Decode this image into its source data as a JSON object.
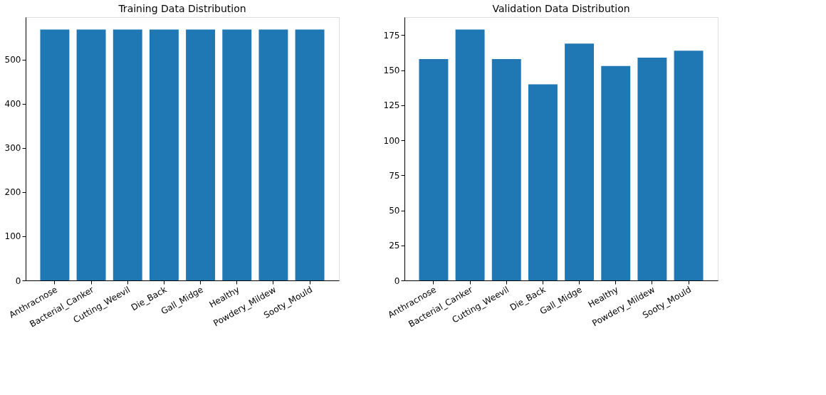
{
  "chart_data": [
    {
      "type": "bar",
      "title": "Training Data Distribution",
      "categories": [
        "Anthracnose",
        "Bacterial_Canker",
        "Cutting_Weevil",
        "Die_Back",
        "Gall_Midge",
        "Healthy",
        "Powdery_Mildew",
        "Sooty_Mould"
      ],
      "values": [
        568,
        568,
        568,
        568,
        568,
        568,
        568,
        568
      ],
      "color": "#1f77b4",
      "ylim": [
        0,
        596.4
      ],
      "yticks": [
        0,
        100,
        200,
        300,
        400,
        500
      ],
      "grid": false
    },
    {
      "type": "bar",
      "title": "Validation Data Distribution",
      "categories": [
        "Anthracnose",
        "Bacterial_Canker",
        "Cutting_Weevil",
        "Die_Back",
        "Gall_Midge",
        "Healthy",
        "Powdery_Mildew",
        "Sooty_Mould"
      ],
      "values": [
        158,
        179,
        158,
        140,
        169,
        153,
        159,
        164
      ],
      "color": "#1f77b4",
      "ylim": [
        0,
        187.95
      ],
      "yticks": [
        0,
        25,
        50,
        75,
        100,
        125,
        150,
        175
      ],
      "grid": false
    }
  ]
}
